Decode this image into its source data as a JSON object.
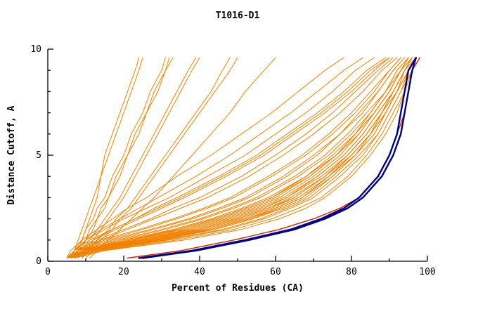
{
  "title": "T1016-D1",
  "chart_data": {
    "type": "line",
    "title": "T1016-D1",
    "xlabel": "Percent of Residues (CA)",
    "ylabel": "Distance Cutoff, A",
    "xlim": [
      0,
      100
    ],
    "ylim": [
      0,
      10
    ],
    "x_ticks_major": [
      0,
      20,
      40,
      60,
      80,
      100
    ],
    "x_ticks_minor": [
      10,
      30,
      50,
      70,
      90
    ],
    "y_ticks_major": [
      0,
      5,
      10
    ],
    "y_ticks_minor": [
      1,
      2,
      3,
      4,
      6,
      7,
      8,
      9
    ],
    "legend": "none",
    "grid": false,
    "colors": {
      "models": "#f08000",
      "highlight": "#000080",
      "secondary": "#cc2200",
      "axis": "#000000"
    },
    "y_samples": [
      0.15,
      0.5,
      1,
      1.5,
      2,
      2.5,
      3,
      4,
      5,
      6,
      7,
      8,
      9,
      9.6
    ],
    "series_models_percent_x": [
      [
        5,
        11,
        28,
        42,
        52,
        60,
        66,
        74,
        80,
        85,
        88,
        91,
        94,
        97
      ],
      [
        6,
        13,
        32,
        47,
        57,
        64,
        70,
        77,
        83,
        87,
        90,
        93,
        96,
        98
      ],
      [
        5,
        9,
        22,
        35,
        45,
        53,
        60,
        69,
        76,
        81,
        86,
        90,
        93,
        96
      ],
      [
        6,
        10,
        25,
        39,
        49,
        57,
        63,
        72,
        79,
        84,
        88,
        91,
        94,
        96
      ],
      [
        5,
        8,
        18,
        30,
        40,
        48,
        55,
        65,
        73,
        79,
        84,
        89,
        92,
        95
      ],
      [
        6,
        12,
        30,
        44,
        54,
        61,
        67,
        75,
        81,
        86,
        89,
        92,
        95,
        97
      ],
      [
        5,
        10,
        24,
        37,
        47,
        55,
        62,
        71,
        78,
        83,
        87,
        91,
        94,
        96
      ],
      [
        6,
        14,
        34,
        49,
        59,
        66,
        72,
        79,
        84,
        88,
        91,
        94,
        96,
        98
      ],
      [
        5,
        9,
        20,
        33,
        43,
        51,
        58,
        68,
        75,
        81,
        85,
        89,
        93,
        95
      ],
      [
        6,
        11,
        27,
        41,
        51,
        59,
        65,
        73,
        80,
        85,
        88,
        92,
        95,
        97
      ],
      [
        5,
        8,
        16,
        27,
        37,
        45,
        52,
        62,
        70,
        77,
        82,
        87,
        91,
        94
      ],
      [
        6,
        13,
        31,
        46,
        56,
        63,
        69,
        76,
        82,
        87,
        90,
        93,
        95,
        97
      ],
      [
        5,
        10,
        23,
        36,
        46,
        54,
        61,
        70,
        77,
        82,
        86,
        90,
        93,
        96
      ],
      [
        6,
        12,
        29,
        43,
        53,
        61,
        67,
        74,
        81,
        85,
        89,
        92,
        95,
        97
      ],
      [
        5,
        9,
        21,
        34,
        44,
        52,
        59,
        68,
        76,
        81,
        86,
        90,
        93,
        95
      ],
      [
        6,
        11,
        26,
        40,
        50,
        58,
        64,
        73,
        79,
        84,
        88,
        91,
        94,
        96
      ],
      [
        5,
        7,
        14,
        24,
        33,
        41,
        48,
        58,
        67,
        74,
        80,
        85,
        90,
        93
      ],
      [
        6,
        10,
        24,
        38,
        48,
        56,
        63,
        71,
        78,
        83,
        87,
        91,
        94,
        96
      ],
      [
        5,
        12,
        29,
        44,
        54,
        62,
        68,
        75,
        81,
        86,
        89,
        92,
        95,
        97
      ],
      [
        6,
        9,
        19,
        31,
        41,
        49,
        56,
        66,
        74,
        80,
        85,
        89,
        92,
        95
      ],
      [
        5,
        7,
        11,
        17,
        23,
        29,
        35,
        46,
        56,
        64,
        72,
        79,
        85,
        90
      ],
      [
        6,
        8,
        13,
        20,
        27,
        33,
        40,
        51,
        60,
        68,
        75,
        81,
        87,
        91
      ],
      [
        5,
        7,
        10,
        14,
        19,
        24,
        29,
        39,
        48,
        56,
        64,
        71,
        78,
        83
      ],
      [
        6,
        8,
        12,
        18,
        24,
        30,
        36,
        47,
        57,
        65,
        73,
        80,
        86,
        90
      ],
      [
        5,
        6,
        9,
        13,
        17,
        21,
        26,
        34,
        43,
        51,
        59,
        66,
        73,
        78
      ],
      [
        7,
        9,
        14,
        21,
        28,
        35,
        42,
        53,
        62,
        70,
        77,
        83,
        88,
        92
      ],
      [
        5,
        7,
        10,
        15,
        20,
        26,
        32,
        42,
        52,
        60,
        68,
        75,
        81,
        86
      ],
      [
        6,
        8,
        12,
        17,
        23,
        28,
        34,
        45,
        55,
        63,
        71,
        78,
        84,
        89
      ],
      [
        7,
        8,
        9,
        10,
        11,
        12,
        13,
        14,
        16,
        18,
        20,
        22,
        24,
        25
      ],
      [
        8,
        9,
        10,
        12,
        13,
        15,
        16,
        19,
        21,
        24,
        26,
        29,
        31,
        33
      ],
      [
        6,
        7,
        8,
        9,
        10,
        11,
        12,
        14,
        15,
        17,
        19,
        21,
        23,
        24
      ],
      [
        9,
        10,
        12,
        14,
        16,
        18,
        20,
        23,
        26,
        29,
        32,
        35,
        38,
        40
      ],
      [
        7,
        8,
        10,
        11,
        13,
        14,
        16,
        18,
        21,
        23,
        26,
        28,
        31,
        32
      ],
      [
        10,
        12,
        14,
        17,
        19,
        22,
        24,
        28,
        32,
        36,
        40,
        44,
        48,
        50
      ],
      [
        8,
        9,
        11,
        13,
        15,
        17,
        19,
        22,
        25,
        28,
        31,
        34,
        37,
        39
      ],
      [
        6,
        7,
        9,
        10,
        12,
        13,
        15,
        17,
        20,
        22,
        25,
        27,
        30,
        31
      ],
      [
        11,
        13,
        16,
        19,
        22,
        25,
        28,
        33,
        38,
        43,
        48,
        52,
        57,
        60
      ],
      [
        9,
        11,
        13,
        16,
        18,
        21,
        23,
        27,
        31,
        35,
        39,
        43,
        46,
        48
      ],
      [
        5,
        10,
        26,
        40,
        50,
        58,
        65,
        73,
        79,
        84,
        88,
        91,
        94,
        96
      ],
      [
        6,
        9,
        17,
        28,
        38,
        46,
        53,
        63,
        71,
        77,
        83,
        87,
        91,
        94
      ],
      [
        5,
        11,
        28,
        43,
        53,
        60,
        66,
        74,
        80,
        85,
        89,
        92,
        94,
        96
      ],
      [
        7,
        15,
        36,
        51,
        61,
        68,
        73,
        80,
        85,
        89,
        92,
        94,
        96,
        98
      ],
      [
        5,
        8,
        15,
        25,
        34,
        42,
        49,
        59,
        68,
        75,
        81,
        86,
        90,
        93
      ],
      [
        6,
        10,
        22,
        34,
        44,
        52,
        59,
        69,
        76,
        82,
        86,
        90,
        93,
        95
      ]
    ],
    "series_secondary_percent_x": [
      [
        21,
        35,
        49,
        61,
        70,
        77,
        82,
        87,
        90,
        92,
        94,
        95,
        96,
        98
      ]
    ],
    "series_highlight_percent_x": [
      [
        24,
        38,
        52,
        64,
        72,
        78,
        82,
        87,
        90,
        92,
        93,
        94,
        95,
        97
      ],
      [
        25,
        39,
        53,
        65,
        73,
        79,
        83,
        88,
        91,
        93,
        94,
        95,
        96,
        97
      ]
    ]
  }
}
